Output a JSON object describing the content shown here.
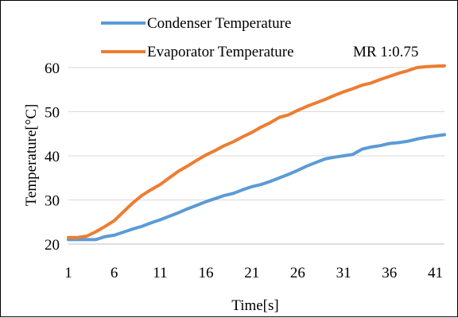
{
  "chart_data": {
    "type": "line",
    "title": "",
    "annotation": "MR 1:0.75",
    "xlabel": "Time[s]",
    "ylabel": "Temperature[°C]",
    "xlim": [
      1,
      42
    ],
    "ylim": [
      20,
      60
    ],
    "xticks": [
      "1",
      "6",
      "11",
      "16",
      "21",
      "26",
      "31",
      "36",
      "41"
    ],
    "yticks": [
      "20",
      "30",
      "40",
      "50",
      "60"
    ],
    "grid": "horizontal",
    "legend": "top-left",
    "series": [
      {
        "name": "Condenser Temperature",
        "color": "#5b9bd5",
        "x": [
          1,
          2,
          3,
          4,
          5,
          6,
          7,
          8,
          9,
          10,
          11,
          12,
          13,
          14,
          15,
          16,
          17,
          18,
          19,
          20,
          21,
          22,
          23,
          24,
          25,
          26,
          27,
          28,
          29,
          30,
          31,
          32,
          33,
          34,
          35,
          36,
          37,
          38,
          39,
          40,
          41,
          42
        ],
        "values": [
          21,
          21,
          21,
          21,
          21.7,
          22,
          22.7,
          23.4,
          24,
          24.8,
          25.5,
          26.3,
          27.1,
          28,
          28.8,
          29.6,
          30.3,
          31,
          31.5,
          32.3,
          33,
          33.5,
          34.2,
          35,
          35.8,
          36.7,
          37.7,
          38.5,
          39.3,
          39.7,
          40,
          40.3,
          41.5,
          42,
          42.3,
          42.8,
          43,
          43.3,
          43.8,
          44.2,
          44.5,
          44.8
        ]
      },
      {
        "name": "Evaporator Temperature",
        "color": "#ed7d31",
        "x": [
          1,
          2,
          3,
          4,
          5,
          6,
          7,
          8,
          9,
          10,
          11,
          12,
          13,
          14,
          15,
          16,
          17,
          18,
          19,
          20,
          21,
          22,
          23,
          24,
          25,
          26,
          27,
          28,
          29,
          30,
          31,
          32,
          33,
          34,
          35,
          36,
          37,
          38,
          39,
          40,
          41,
          42
        ],
        "values": [
          21.5,
          21.5,
          21.8,
          22.8,
          24,
          25.3,
          27.3,
          29.3,
          31,
          32.3,
          33.5,
          35,
          36.5,
          37.7,
          39,
          40.2,
          41.2,
          42.3,
          43.2,
          44.3,
          45.3,
          46.5,
          47.5,
          48.7,
          49.3,
          50.3,
          51.2,
          52,
          52.8,
          53.7,
          54.5,
          55.2,
          56,
          56.5,
          57.3,
          58,
          58.7,
          59.3,
          60,
          60.2,
          60.3,
          60.4
        ]
      }
    ]
  }
}
